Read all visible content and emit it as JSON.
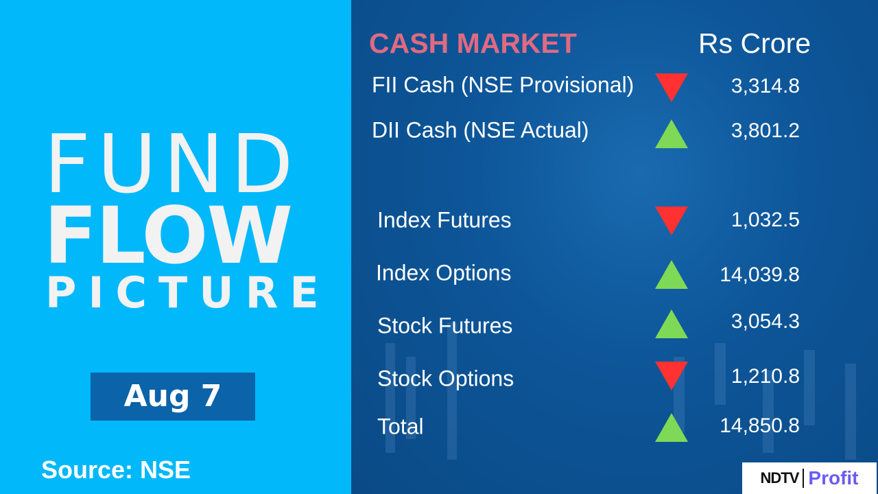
{
  "left": {
    "line1": "FUND",
    "line2": "FLOW",
    "line3": "PICTURE",
    "date": "Aug 7",
    "source": "Source: NSE"
  },
  "header": {
    "title": "CASH MARKET",
    "unit": "Rs Crore"
  },
  "colors": {
    "up": "#7ed957",
    "down": "#ff3131",
    "title": "#e06a82",
    "left_bg": "#00b8fa",
    "right_bg": "#0b4f8c"
  },
  "rows": [
    {
      "label": "FII Cash (NSE Provisional)",
      "direction": "down",
      "value": "3,314.8"
    },
    {
      "label": "DII Cash (NSE Actual)",
      "direction": "up",
      "value": "3,801.2"
    },
    {
      "label": "Index Futures",
      "direction": "down",
      "value": "1,032.5"
    },
    {
      "label": "Index Options",
      "direction": "up",
      "value": "14,039.8"
    },
    {
      "label": "Stock Futures",
      "direction": "up",
      "value": "3,054.3"
    },
    {
      "label": "Stock Options",
      "direction": "down",
      "value": "1,210.8"
    },
    {
      "label": "Total",
      "direction": "up",
      "value": "14,850.8"
    }
  ],
  "logo": {
    "brand": "NDTV",
    "product": "Profit"
  }
}
